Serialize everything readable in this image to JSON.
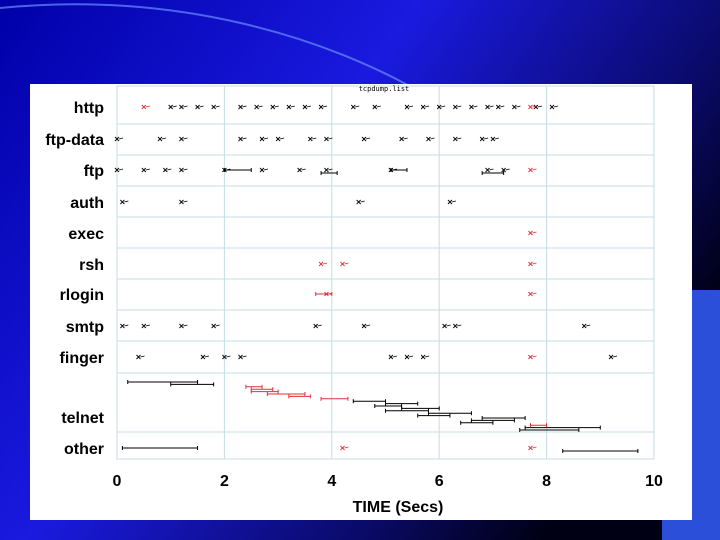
{
  "colors": {
    "background_gradient": [
      "#0000a8",
      "#1a1ae0",
      "#000014"
    ],
    "accent_bars": "#2b4fd8",
    "black_marks": "#000000",
    "red_marks": "#e0303a",
    "grid": "#c6dde6"
  },
  "chart_data": {
    "type": "scatter",
    "title": "tcpdump.list",
    "xlabel": "TIME (Secs)",
    "ylabel": "",
    "xlim": [
      0,
      10
    ],
    "x_ticks": [
      0,
      2,
      4,
      6,
      8,
      10
    ],
    "grid": true,
    "categories": [
      "http",
      "ftp-data",
      "ftp",
      "auth",
      "exec",
      "rsh",
      "rlogin",
      "smtp",
      "finger",
      "telnet",
      "other"
    ],
    "series": [
      {
        "color": "black",
        "points": [
          {
            "cat": "http",
            "x": 1.0
          },
          {
            "cat": "http",
            "x": 1.2
          },
          {
            "cat": "http",
            "x": 1.5
          },
          {
            "cat": "http",
            "x": 1.8
          },
          {
            "cat": "http",
            "x": 2.3
          },
          {
            "cat": "http",
            "x": 2.6
          },
          {
            "cat": "http",
            "x": 2.9
          },
          {
            "cat": "http",
            "x": 3.2
          },
          {
            "cat": "http",
            "x": 3.5
          },
          {
            "cat": "http",
            "x": 3.8
          },
          {
            "cat": "http",
            "x": 4.4
          },
          {
            "cat": "http",
            "x": 4.8
          },
          {
            "cat": "http",
            "x": 5.4
          },
          {
            "cat": "http",
            "x": 5.7
          },
          {
            "cat": "http",
            "x": 6.0
          },
          {
            "cat": "http",
            "x": 6.3
          },
          {
            "cat": "http",
            "x": 6.6
          },
          {
            "cat": "http",
            "x": 6.9
          },
          {
            "cat": "http",
            "x": 7.1
          },
          {
            "cat": "http",
            "x": 7.4
          },
          {
            "cat": "http",
            "x": 7.8
          },
          {
            "cat": "http",
            "x": 8.1
          },
          {
            "cat": "ftp-data",
            "x": 0.0
          },
          {
            "cat": "ftp-data",
            "x": 0.8
          },
          {
            "cat": "ftp-data",
            "x": 1.2
          },
          {
            "cat": "ftp-data",
            "x": 2.3
          },
          {
            "cat": "ftp-data",
            "x": 2.7
          },
          {
            "cat": "ftp-data",
            "x": 3.0
          },
          {
            "cat": "ftp-data",
            "x": 3.6
          },
          {
            "cat": "ftp-data",
            "x": 3.9
          },
          {
            "cat": "ftp-data",
            "x": 4.6
          },
          {
            "cat": "ftp-data",
            "x": 5.3
          },
          {
            "cat": "ftp-data",
            "x": 5.8
          },
          {
            "cat": "ftp-data",
            "x": 6.3
          },
          {
            "cat": "ftp-data",
            "x": 6.8
          },
          {
            "cat": "ftp-data",
            "x": 7.0
          },
          {
            "cat": "ftp",
            "x": 0.0
          },
          {
            "cat": "ftp",
            "x": 0.5
          },
          {
            "cat": "ftp",
            "x": 0.9
          },
          {
            "cat": "ftp",
            "x": 1.2
          },
          {
            "cat": "ftp",
            "x": 2.0
          },
          {
            "cat": "ftp",
            "x": 2.7
          },
          {
            "cat": "ftp",
            "x": 3.4
          },
          {
            "cat": "ftp",
            "x": 3.9
          },
          {
            "cat": "ftp",
            "x": 5.1
          },
          {
            "cat": "ftp",
            "x": 6.9
          },
          {
            "cat": "ftp",
            "x": 7.2
          },
          {
            "cat": "auth",
            "x": 0.1
          },
          {
            "cat": "auth",
            "x": 1.2
          },
          {
            "cat": "auth",
            "x": 4.5
          },
          {
            "cat": "auth",
            "x": 6.2
          },
          {
            "cat": "smtp",
            "x": 0.1
          },
          {
            "cat": "smtp",
            "x": 0.5
          },
          {
            "cat": "smtp",
            "x": 1.2
          },
          {
            "cat": "smtp",
            "x": 1.8
          },
          {
            "cat": "smtp",
            "x": 3.7
          },
          {
            "cat": "smtp",
            "x": 4.6
          },
          {
            "cat": "smtp",
            "x": 6.1
          },
          {
            "cat": "smtp",
            "x": 6.3
          },
          {
            "cat": "smtp",
            "x": 8.7
          },
          {
            "cat": "finger",
            "x": 0.4
          },
          {
            "cat": "finger",
            "x": 1.6
          },
          {
            "cat": "finger",
            "x": 2.0
          },
          {
            "cat": "finger",
            "x": 2.3
          },
          {
            "cat": "finger",
            "x": 5.1
          },
          {
            "cat": "finger",
            "x": 5.4
          },
          {
            "cat": "finger",
            "x": 5.7
          },
          {
            "cat": "finger",
            "x": 9.2
          }
        ]
      },
      {
        "color": "red",
        "points": [
          {
            "cat": "http",
            "x": 0.5
          },
          {
            "cat": "http",
            "x": 7.7
          },
          {
            "cat": "ftp",
            "x": 7.7
          },
          {
            "cat": "exec",
            "x": 7.7
          },
          {
            "cat": "rsh",
            "x": 3.8
          },
          {
            "cat": "rsh",
            "x": 4.2
          },
          {
            "cat": "rsh",
            "x": 7.7
          },
          {
            "cat": "rlogin",
            "x": 3.9
          },
          {
            "cat": "rlogin",
            "x": 7.7
          },
          {
            "cat": "finger",
            "x": 7.7
          },
          {
            "cat": "other",
            "x": 4.2
          },
          {
            "cat": "other",
            "x": 7.7
          }
        ]
      }
    ],
    "intervals": [
      {
        "cat": "ftp",
        "x0": 2.0,
        "x1": 2.5,
        "color": "black"
      },
      {
        "cat": "ftp",
        "x0": 3.8,
        "x1": 4.1,
        "color": "black"
      },
      {
        "cat": "ftp",
        "x0": 5.1,
        "x1": 5.4,
        "color": "black"
      },
      {
        "cat": "ftp",
        "x0": 6.8,
        "x1": 7.2,
        "color": "black"
      },
      {
        "cat": "rlogin",
        "x0": 3.7,
        "x1": 4.0,
        "color": "red"
      },
      {
        "cat": "telnet",
        "x0": 7.5,
        "x1": 8.6,
        "color": "black"
      },
      {
        "cat": "telnet",
        "x0": 7.6,
        "x1": 9.0,
        "color": "black"
      },
      {
        "cat": "telnet",
        "x0": 7.7,
        "x1": 8.0,
        "color": "red"
      },
      {
        "cat": "telnet",
        "x0": 6.4,
        "x1": 7.0,
        "color": "black"
      },
      {
        "cat": "telnet",
        "x0": 6.6,
        "x1": 7.4,
        "color": "black"
      },
      {
        "cat": "telnet",
        "x0": 6.8,
        "x1": 7.6,
        "color": "black"
      },
      {
        "cat": "telnet",
        "x0": 5.6,
        "x1": 6.2,
        "color": "black"
      },
      {
        "cat": "telnet",
        "x0": 5.8,
        "x1": 6.6,
        "color": "black"
      },
      {
        "cat": "telnet",
        "x0": 5.0,
        "x1": 5.8,
        "color": "black"
      },
      {
        "cat": "telnet",
        "x0": 5.3,
        "x1": 6.0,
        "color": "black"
      },
      {
        "cat": "telnet",
        "x0": 4.8,
        "x1": 5.3,
        "color": "black"
      },
      {
        "cat": "telnet",
        "x0": 5.0,
        "x1": 5.6,
        "color": "black"
      },
      {
        "cat": "telnet",
        "x0": 4.4,
        "x1": 5.0,
        "color": "black"
      },
      {
        "cat": "telnet",
        "x0": 3.8,
        "x1": 4.3,
        "color": "red"
      },
      {
        "cat": "telnet",
        "x0": 3.2,
        "x1": 3.6,
        "color": "red"
      },
      {
        "cat": "telnet",
        "x0": 2.8,
        "x1": 3.5,
        "color": "red"
      },
      {
        "cat": "telnet",
        "x0": 2.5,
        "x1": 3.0,
        "color": "red"
      },
      {
        "cat": "telnet",
        "x0": 2.5,
        "x1": 2.9,
        "color": "red"
      },
      {
        "cat": "telnet",
        "x0": 2.4,
        "x1": 2.7,
        "color": "red"
      },
      {
        "cat": "telnet",
        "x0": 1.0,
        "x1": 1.8,
        "color": "black"
      },
      {
        "cat": "telnet",
        "x0": 0.2,
        "x1": 1.5,
        "color": "black"
      },
      {
        "cat": "other",
        "x0": 0.1,
        "x1": 1.5,
        "color": "black"
      },
      {
        "cat": "other",
        "x0": 8.3,
        "x1": 9.7,
        "color": "black"
      }
    ]
  }
}
